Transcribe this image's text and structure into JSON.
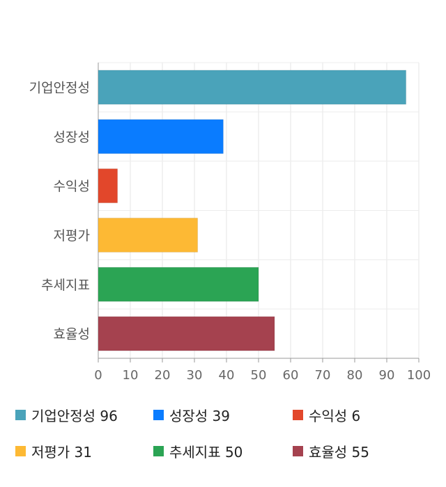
{
  "chart_data": {
    "type": "bar",
    "orientation": "horizontal",
    "categories": [
      "기업안정성",
      "성장성",
      "수익성",
      "저평가",
      "추세지표",
      "효율성"
    ],
    "values": [
      96,
      39,
      6,
      31,
      50,
      55
    ],
    "colors": [
      "#4aa3ba",
      "#0a7cff",
      "#e2472b",
      "#fdb934",
      "#2ba454",
      "#a5424f"
    ],
    "xlim": [
      0,
      100
    ],
    "xticks": [
      "0",
      "10",
      "20",
      "30",
      "40",
      "50",
      "60",
      "70",
      "80",
      "90",
      "100"
    ],
    "grid": true,
    "legend_position": "bottom"
  },
  "legend": [
    {
      "label": "기업안정성 96",
      "color": "#4aa3ba"
    },
    {
      "label": "성장성 39",
      "color": "#0a7cff"
    },
    {
      "label": "수익성 6",
      "color": "#e2472b"
    },
    {
      "label": "저평가 31",
      "color": "#fdb934"
    },
    {
      "label": "추세지표 50",
      "color": "#2ba454"
    },
    {
      "label": "효율성 55",
      "color": "#a5424f"
    }
  ]
}
